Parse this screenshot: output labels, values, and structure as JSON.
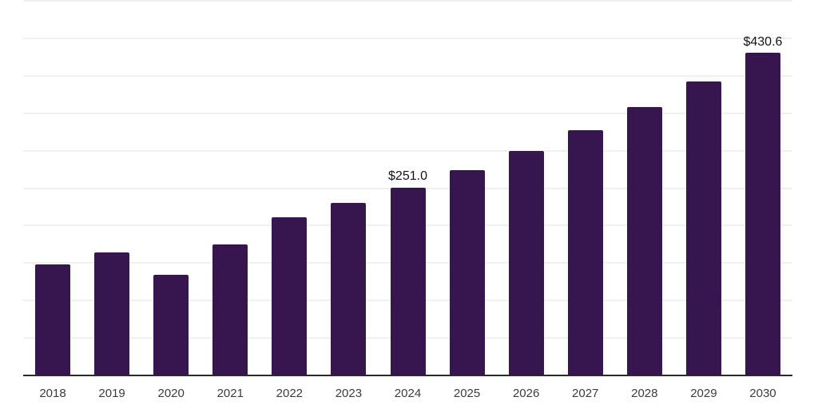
{
  "chart": {
    "bar_color": "#37154E",
    "grid_color": "#f0f0f0",
    "axis_color": "#2a2a2a",
    "tick_label_color": "#3c3c3c",
    "value_label_color": "#141414",
    "background_color": "#ffffff"
  },
  "chart_data": {
    "type": "bar",
    "categories": [
      "2018",
      "2019",
      "2020",
      "2021",
      "2022",
      "2023",
      "2024",
      "2025",
      "2026",
      "2027",
      "2028",
      "2029",
      "2030"
    ],
    "values": [
      148.6,
      163.9,
      134.3,
      174.9,
      211.1,
      230.3,
      251.0,
      274.0,
      299.6,
      327.0,
      357.9,
      392.3,
      430.6
    ],
    "data_labels": [
      null,
      null,
      null,
      null,
      null,
      null,
      "$251.0",
      null,
      null,
      null,
      null,
      null,
      "$430.6"
    ],
    "labeled_points": [
      {
        "category": "2024",
        "label": "$251.0",
        "value": 251.0
      },
      {
        "category": "2030",
        "label": "$430.6",
        "value": 430.6
      }
    ],
    "title": "",
    "xlabel": "",
    "ylabel": "",
    "ylim": [
      0,
      500
    ],
    "gridline_step": 50,
    "grid": "horizontal",
    "y_axis_labels_shown": false,
    "legend_position": "none"
  }
}
